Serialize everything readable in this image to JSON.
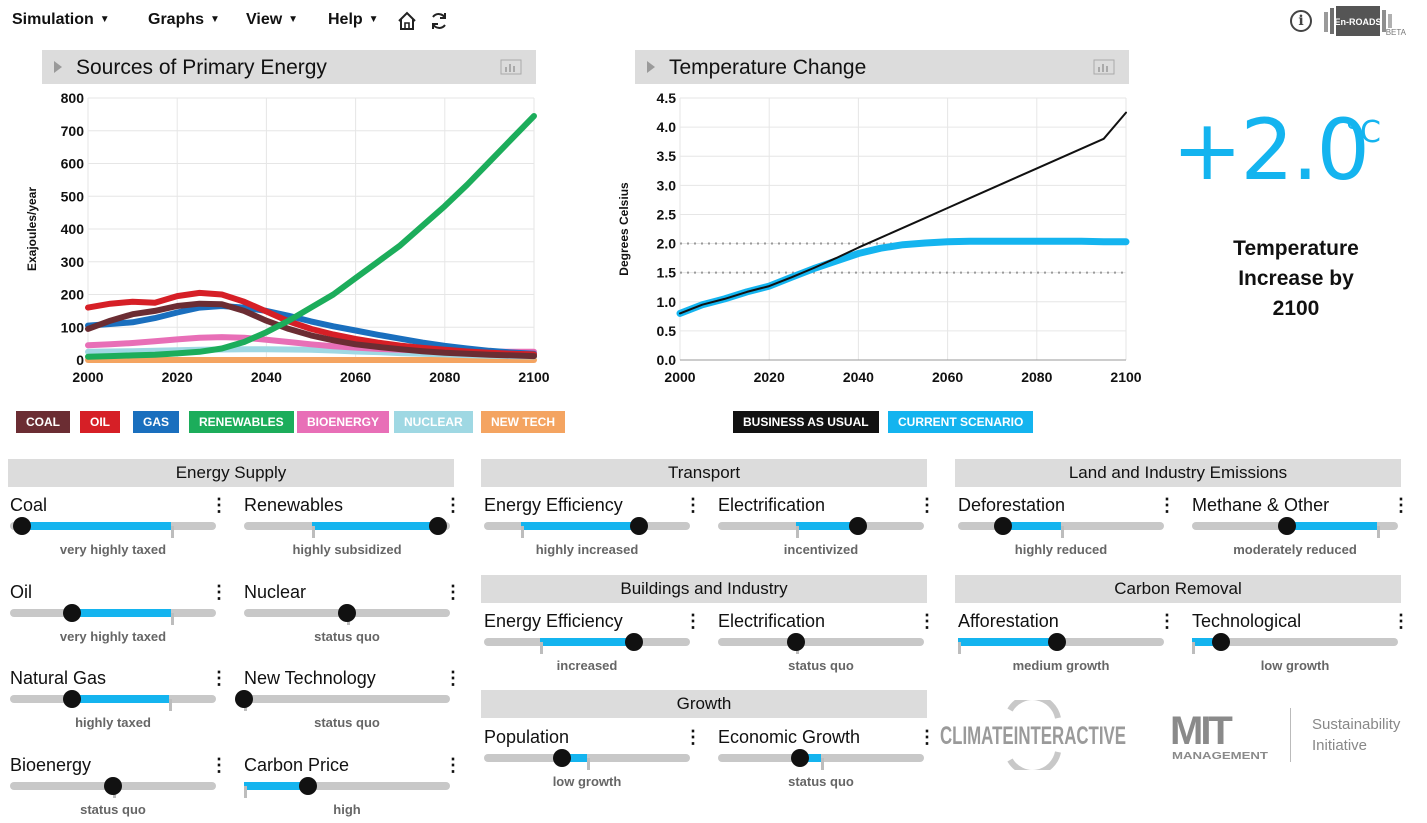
{
  "menu": {
    "items": [
      {
        "label": "Simulation"
      },
      {
        "label": "Graphs"
      },
      {
        "label": "View"
      },
      {
        "label": "Help"
      }
    ],
    "logo": {
      "main": "En-ROADS",
      "tag": "BETA"
    },
    "info_glyph": "i"
  },
  "charts": {
    "primary_energy": {
      "title": "Sources of Primary Energy",
      "legend": [
        {
          "label": "COAL",
          "color": "#6b2d33"
        },
        {
          "label": "OIL",
          "color": "#d61f26"
        },
        {
          "label": "GAS",
          "color": "#1a6fbe"
        },
        {
          "label": "RENEWABLES",
          "color": "#1cad5b"
        },
        {
          "label": "BIOENERGY",
          "color": "#e86fb7"
        },
        {
          "label": "NUCLEAR",
          "color": "#9fd8e3"
        },
        {
          "label": "NEW TECH",
          "color": "#f4a461"
        }
      ]
    },
    "temperature": {
      "title": "Temperature Change",
      "legend": [
        {
          "label": "BUSINESS AS USUAL",
          "color": "#111111"
        },
        {
          "label": "CURRENT SCENARIO",
          "color": "#14b4ef"
        }
      ]
    }
  },
  "result": {
    "big_value": "+2.0",
    "unit": "°C",
    "caption_lines": [
      "Temperature",
      "Increase by",
      "2100"
    ]
  },
  "sections": {
    "energy_supply": "Energy Supply",
    "transport": "Transport",
    "buildings": "Buildings and Industry",
    "growth": "Growth",
    "land": "Land and Industry Emissions",
    "carbon_removal": "Carbon Removal"
  },
  "controls": [
    {
      "id": "coal",
      "name": "Coal",
      "value_label": "very highly taxed",
      "pos": 0.06,
      "fill": [
        0.06,
        0.78
      ],
      "mark": 0.78
    },
    {
      "id": "renewables",
      "name": "Renewables",
      "value_label": "highly subsidized",
      "pos": 0.94,
      "fill": [
        0.33,
        0.94
      ],
      "mark": 0.33
    },
    {
      "id": "oil",
      "name": "Oil",
      "value_label": "very highly taxed",
      "pos": 0.3,
      "fill": [
        0.3,
        0.78
      ],
      "mark": 0.78
    },
    {
      "id": "nuclear",
      "name": "Nuclear",
      "value_label": "status quo",
      "pos": 0.5,
      "fill": [
        0.5,
        0.5
      ],
      "mark": 0.5
    },
    {
      "id": "natural-gas",
      "name": "Natural Gas",
      "value_label": "highly taxed",
      "pos": 0.3,
      "fill": [
        0.3,
        0.77
      ],
      "mark": 0.77
    },
    {
      "id": "new-technology",
      "name": "New Technology",
      "value_label": "status quo",
      "pos": 0.0,
      "fill": [
        0,
        0
      ],
      "mark": 0.0
    },
    {
      "id": "bioenergy",
      "name": "Bioenergy",
      "value_label": "status quo",
      "pos": 0.5,
      "fill": [
        0.5,
        0.5
      ],
      "mark": 0.5
    },
    {
      "id": "carbon-price",
      "name": "Carbon Price",
      "value_label": "high",
      "pos": 0.31,
      "fill": [
        0.0,
        0.31
      ],
      "mark": 0.0
    },
    {
      "id": "transport-efficiency",
      "name": "Energy Efficiency",
      "value_label": "highly increased",
      "pos": 0.75,
      "fill": [
        0.18,
        0.75
      ],
      "mark": 0.18
    },
    {
      "id": "transport-electrification",
      "name": "Electrification",
      "value_label": "incentivized",
      "pos": 0.68,
      "fill": [
        0.38,
        0.68
      ],
      "mark": 0.38
    },
    {
      "id": "buildings-efficiency",
      "name": "Energy Efficiency",
      "value_label": "increased",
      "pos": 0.73,
      "fill": [
        0.27,
        0.73
      ],
      "mark": 0.27
    },
    {
      "id": "buildings-electrification",
      "name": "Electrification",
      "value_label": "status quo",
      "pos": 0.38,
      "fill": [
        0.38,
        0.38
      ],
      "mark": 0.38
    },
    {
      "id": "population",
      "name": "Population",
      "value_label": "low growth",
      "pos": 0.38,
      "fill": [
        0.38,
        0.5
      ],
      "mark": 0.5
    },
    {
      "id": "economic-growth",
      "name": "Economic Growth",
      "value_label": "status quo",
      "pos": 0.4,
      "fill": [
        0.4,
        0.5
      ],
      "mark": 0.5
    },
    {
      "id": "deforestation",
      "name": "Deforestation",
      "value_label": "highly reduced",
      "pos": 0.22,
      "fill": [
        0.22,
        0.5
      ],
      "mark": 0.5
    },
    {
      "id": "methane",
      "name": "Methane & Other",
      "value_label": "moderately reduced",
      "pos": 0.46,
      "fill": [
        0.46,
        0.9
      ],
      "mark": 0.9
    },
    {
      "id": "afforestation",
      "name": "Afforestation",
      "value_label": "medium growth",
      "pos": 0.48,
      "fill": [
        0.0,
        0.48
      ],
      "mark": 0.0
    },
    {
      "id": "technological",
      "name": "Technological",
      "value_label": "low growth",
      "pos": 0.14,
      "fill": [
        0.0,
        0.14
      ],
      "mark": 0.0
    }
  ],
  "chart_data": [
    {
      "type": "line",
      "title": "Sources of Primary Energy",
      "xlabel": "",
      "ylabel": "Exajoules/year",
      "xlim": [
        2000,
        2100
      ],
      "ylim": [
        0,
        800
      ],
      "xticks": [
        2000,
        2020,
        2040,
        2060,
        2080,
        2100
      ],
      "yticks": [
        0,
        100,
        200,
        300,
        400,
        500,
        600,
        700,
        800
      ],
      "grid": true,
      "legend_position": "bottom",
      "x": [
        2000,
        2005,
        2010,
        2015,
        2020,
        2025,
        2030,
        2035,
        2040,
        2045,
        2050,
        2055,
        2060,
        2065,
        2070,
        2075,
        2080,
        2085,
        2090,
        2095,
        2100
      ],
      "series": [
        {
          "name": "COAL",
          "color": "#6b2d33",
          "values": [
            95,
            120,
            140,
            150,
            165,
            172,
            170,
            150,
            120,
            95,
            75,
            60,
            48,
            40,
            33,
            27,
            22,
            19,
            16,
            14,
            12
          ]
        },
        {
          "name": "OIL",
          "color": "#d61f26",
          "values": [
            160,
            172,
            178,
            175,
            195,
            205,
            200,
            178,
            148,
            118,
            95,
            78,
            64,
            53,
            44,
            37,
            31,
            26,
            22,
            19,
            17
          ]
        },
        {
          "name": "GAS",
          "color": "#1a6fbe",
          "values": [
            105,
            110,
            115,
            128,
            145,
            160,
            165,
            160,
            150,
            135,
            118,
            103,
            90,
            77,
            65,
            53,
            43,
            35,
            28,
            23,
            19
          ]
        },
        {
          "name": "RENEWABLES",
          "color": "#1cad5b",
          "values": [
            10,
            12,
            14,
            16,
            20,
            25,
            35,
            55,
            85,
            120,
            160,
            200,
            250,
            300,
            350,
            410,
            470,
            535,
            605,
            675,
            745
          ]
        },
        {
          "name": "BIOENERGY",
          "color": "#e86fb7",
          "values": [
            45,
            48,
            52,
            57,
            63,
            68,
            70,
            68,
            62,
            55,
            48,
            42,
            38,
            34,
            31,
            29,
            27,
            26,
            25,
            25,
            25
          ]
        },
        {
          "name": "NUCLEAR",
          "color": "#9fd8e3",
          "values": [
            25,
            26,
            27,
            28,
            30,
            31,
            32,
            33,
            33,
            32,
            31,
            29,
            26,
            24,
            21,
            19,
            17,
            15,
            13,
            12,
            11
          ]
        },
        {
          "name": "NEW TECH",
          "color": "#f4a461",
          "values": [
            0,
            0,
            0,
            0,
            0,
            0,
            0,
            0,
            0,
            0,
            0,
            0,
            0,
            0,
            0,
            0,
            0,
            0,
            0,
            0,
            0
          ]
        }
      ]
    },
    {
      "type": "line",
      "title": "Temperature Change",
      "xlabel": "",
      "ylabel": "Degrees Celsius",
      "xlim": [
        2000,
        2100
      ],
      "ylim": [
        0,
        4.5
      ],
      "xticks": [
        2000,
        2020,
        2040,
        2060,
        2080,
        2100
      ],
      "yticks": [
        0.0,
        0.5,
        1.0,
        1.5,
        2.0,
        2.5,
        3.0,
        3.5,
        4.0,
        4.5
      ],
      "grid": true,
      "reference_lines": [
        1.5,
        2.0
      ],
      "legend_position": "bottom",
      "x": [
        2000,
        2005,
        2010,
        2015,
        2020,
        2025,
        2030,
        2035,
        2040,
        2045,
        2050,
        2055,
        2060,
        2065,
        2070,
        2075,
        2080,
        2085,
        2090,
        2095,
        2100
      ],
      "series": [
        {
          "name": "BUSINESS AS USUAL",
          "color": "#111111",
          "values": [
            0.8,
            0.95,
            1.05,
            1.17,
            1.27,
            1.42,
            1.58,
            1.75,
            1.93,
            2.1,
            2.27,
            2.44,
            2.61,
            2.78,
            2.95,
            3.12,
            3.29,
            3.46,
            3.63,
            3.8,
            4.25
          ]
        },
        {
          "name": "CURRENT SCENARIO",
          "color": "#14b4ef",
          "values": [
            0.8,
            0.95,
            1.05,
            1.17,
            1.27,
            1.42,
            1.57,
            1.7,
            1.83,
            1.92,
            1.98,
            2.01,
            2.03,
            2.04,
            2.04,
            2.04,
            2.04,
            2.04,
            2.04,
            2.03,
            2.03
          ]
        }
      ]
    }
  ]
}
